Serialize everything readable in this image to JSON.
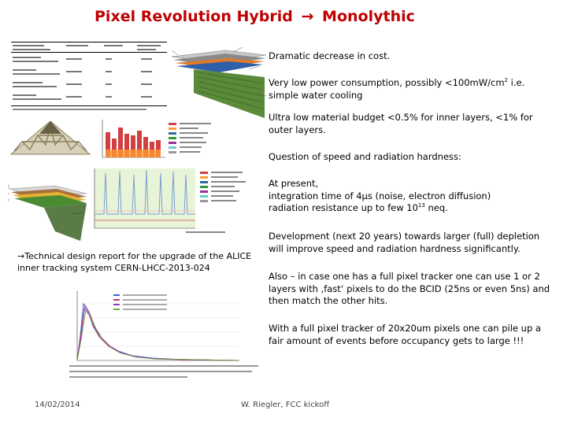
{
  "title": {
    "left": "Pixel Revolution Hybrid",
    "arrow": "→",
    "right": "Monolythic"
  },
  "bullets": [
    {
      "text": "Dramatic decrease in cost."
    },
    {
      "text_before": "Very low power consumption, possibly <100mW/cm",
      "sup": "2",
      "text_after": " i.e. simple water cooling"
    },
    {
      "text": "Ultra low material budget <0.5% for inner layers, <1% for outer layers."
    },
    {
      "text": "Question of speed and radiation hardness:"
    },
    {
      "line1": "At present,",
      "line2": "integration time of 4µs (noise, electron diffusion)",
      "line3_before": "radiation resistance up to few 10",
      "sup": "13",
      "line3_after": " neq."
    },
    {
      "text": "Development (next 20 years) towards larger (full) depletion will improve speed and radiation hardness significantly."
    },
    {
      "text": "Also – in case one has a full pixel tracker one can use 1 or 2 layers with ‚fast‘ pixels to do the BCID (25ns or even 5ns) and then match the other hits."
    },
    {
      "text": "With a full pixel tracker of 20x20um pixels one can pile up a fair amount of events before occupancy gets to large !!!"
    }
  ],
  "caption": {
    "arrow": "→",
    "line1": "Technical design report for the upgrade of the ALICE",
    "line2": "inner tracking system CERN-LHCC-2013-024"
  },
  "footer": {
    "date": "14/02/2014",
    "author": "W. Riegler, FCC kickoff"
  },
  "colors": {
    "title": "#c00000",
    "text": "#000000"
  }
}
